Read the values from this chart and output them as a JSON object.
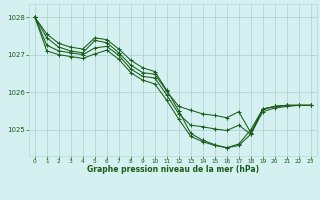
{
  "title": "Graphe pression niveau de la mer (hPa)",
  "bg_color": "#d4f0f0",
  "grid_color": "#b8d8d8",
  "line_color": "#1a5c1a",
  "xlim": [
    -0.5,
    23.5
  ],
  "ylim": [
    1024.3,
    1028.35
  ],
  "yticks": [
    1025,
    1026,
    1027,
    1028
  ],
  "xticks": [
    0,
    1,
    2,
    3,
    4,
    5,
    6,
    7,
    8,
    9,
    10,
    11,
    12,
    13,
    14,
    15,
    16,
    17,
    18,
    19,
    20,
    21,
    22,
    23
  ],
  "series": [
    [
      1028.0,
      1027.55,
      1027.3,
      1027.2,
      1027.15,
      1027.45,
      1027.4,
      1027.15,
      1026.85,
      1026.65,
      1026.55,
      1026.05,
      1025.5,
      1024.9,
      1024.72,
      1024.6,
      1024.52,
      1024.62,
      1025.0,
      1025.55,
      1025.62,
      1025.65,
      1025.65,
      1025.65
    ],
    [
      1028.0,
      1027.45,
      1027.2,
      1027.1,
      1027.05,
      1027.38,
      1027.32,
      1027.05,
      1026.72,
      1026.52,
      1026.48,
      1026.02,
      1025.62,
      1025.52,
      1025.42,
      1025.38,
      1025.32,
      1025.48,
      1024.92,
      1025.55,
      1025.62,
      1025.65,
      1025.65,
      1025.65
    ],
    [
      1028.0,
      1027.25,
      1027.1,
      1027.05,
      1027.0,
      1027.18,
      1027.22,
      1026.98,
      1026.62,
      1026.42,
      1026.38,
      1025.92,
      1025.42,
      1025.12,
      1025.08,
      1025.02,
      1024.98,
      1025.12,
      1024.88,
      1025.55,
      1025.62,
      1025.65,
      1025.65,
      1025.65
    ],
    [
      1028.0,
      1027.1,
      1027.0,
      1026.95,
      1026.9,
      1027.02,
      1027.12,
      1026.88,
      1026.52,
      1026.32,
      1026.22,
      1025.78,
      1025.28,
      1024.82,
      1024.68,
      1024.58,
      1024.52,
      1024.58,
      1024.88,
      1025.48,
      1025.58,
      1025.62,
      1025.65,
      1025.65
    ]
  ]
}
